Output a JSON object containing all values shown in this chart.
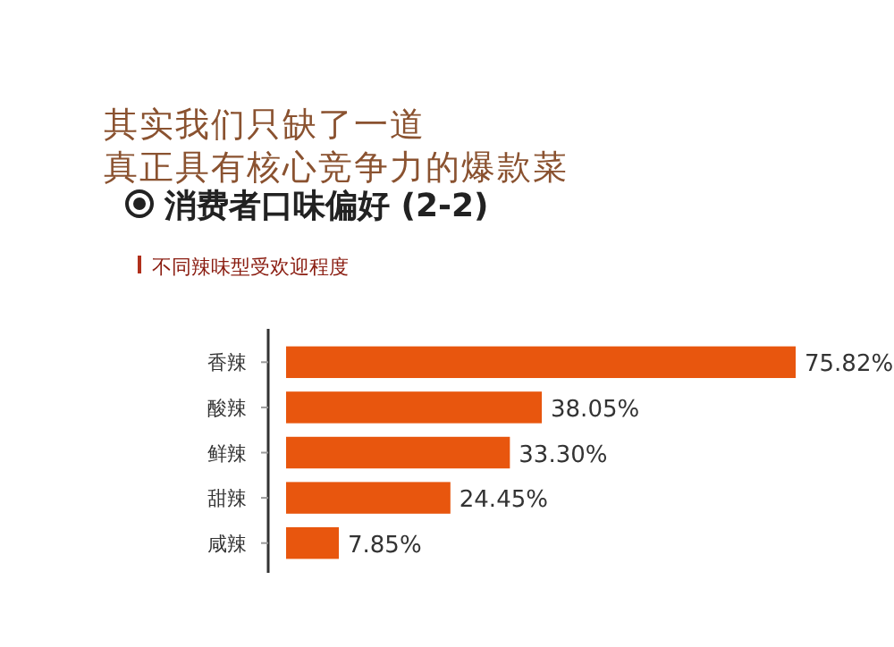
{
  "chart_data": {
    "type": "bar",
    "orientation": "horizontal",
    "title": "其实我们只缺了一道",
    "subtitle": "真正具有核心竞争力的爆款菜",
    "annotations": [
      "消费者口味偏好 (2-2)",
      "不同辣味型受欢迎程度"
    ],
    "categories": [
      "香辣",
      "酸辣",
      "鲜辣",
      "甜辣",
      "咸辣"
    ],
    "values": [
      75.82,
      38.05,
      33.3,
      24.45,
      7.85
    ],
    "value_labels": [
      "75.82%",
      "38.05%",
      "33.30%",
      "24.45%",
      "7.85%"
    ],
    "color": "#e8560e"
  }
}
